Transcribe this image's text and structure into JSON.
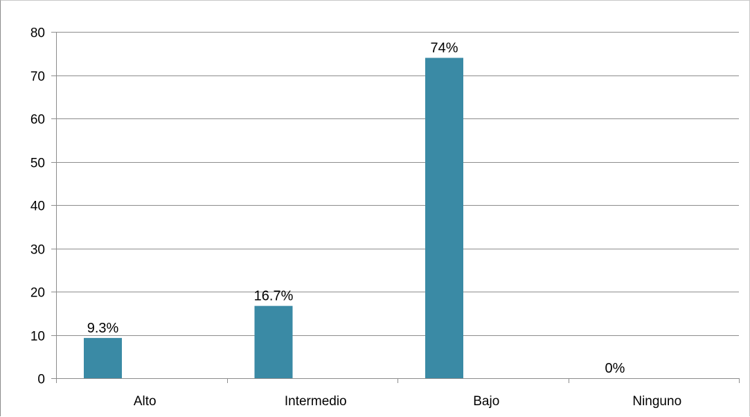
{
  "chart_data": {
    "type": "bar",
    "categories": [
      "Alto",
      "Intermedio",
      "Bajo",
      "Ninguno"
    ],
    "values": [
      9.3,
      16.7,
      74,
      0
    ],
    "data_labels": [
      "9.3%",
      "16.7%",
      "74%",
      "0%"
    ],
    "title": "",
    "xlabel": "",
    "ylabel": "",
    "ylim": [
      0,
      80
    ],
    "yticks": [
      0,
      10,
      20,
      30,
      40,
      50,
      60,
      70,
      80
    ],
    "grid": true,
    "legend": "none",
    "bar_color": "#3a8aa5",
    "grid_color": "#8c8c8c",
    "axis_color": "#8c8c8c"
  }
}
